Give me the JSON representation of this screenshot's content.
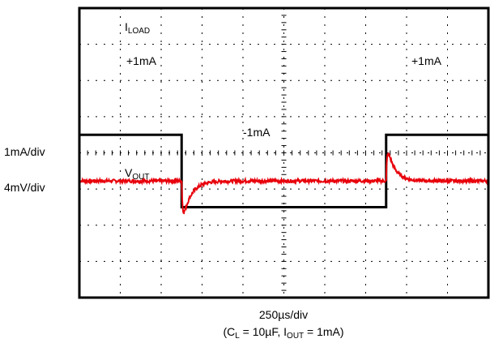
{
  "chart_data": {
    "type": "line",
    "grid": true,
    "grid_divisions": {
      "x": 10,
      "y": 8
    },
    "xlabel": "250µs/div",
    "conditions": {
      "open": "(C",
      "cl_sub": "L",
      "cl_value": " = 10µF, I",
      "iout_sub": "OUT",
      "iout_value": " = 1mA)"
    },
    "left_scale_labels": [
      "1mA/div",
      "4mV/div"
    ],
    "series": [
      {
        "name_main": "I",
        "name_sub": "LOAD",
        "color": "#000000",
        "unit": "mA",
        "step_times_us": [
          0,
          625,
          1875,
          2500
        ],
        "levels_mA": [
          1,
          -1,
          1
        ],
        "annotations": [
          "+1mA",
          "-1mA",
          "+1mA"
        ]
      },
      {
        "name_main": "V",
        "name_sub": "OUT",
        "color": "#e8000b",
        "unit": "mV",
        "baseline_mV": 0,
        "events": [
          {
            "t_us": 625,
            "peak_mV": -5.0,
            "tau_us": 50
          },
          {
            "t_us": 1875,
            "peak_mV": 4.5,
            "tau_us": 45
          }
        ]
      }
    ],
    "x_range_us": [
      0,
      2500
    ]
  }
}
